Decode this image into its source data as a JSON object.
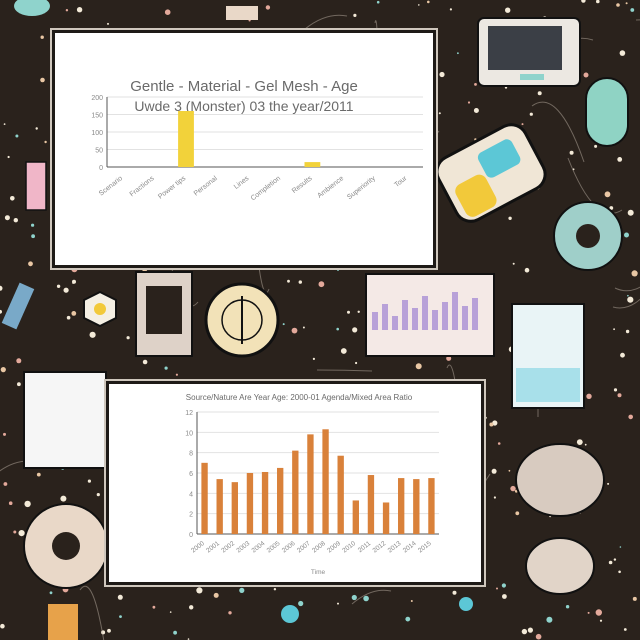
{
  "charts": {
    "top": {
      "title": "Gentle - Material - Gel Mesh - Age",
      "subtitle": "Uwde 3 (Monster) 03 the year/2011"
    },
    "bottom": {
      "title": "Source/Nature Are Year Age: 2000-01 Agenda/Mixed Area Ratio"
    }
  },
  "chart_data": [
    {
      "type": "bar",
      "title": "Gentle - Material - Gel Mesh - Age",
      "subtitle": "Uwde 3 (Monster) 03 the year/2011",
      "xlabel": "",
      "ylabel": "",
      "ylim": [
        0,
        200
      ],
      "yticks": [
        "200",
        "150",
        "100",
        "50",
        "0"
      ],
      "categories": [
        "Scenario",
        "Fractions",
        "Power tips",
        "Personal",
        "Lines",
        "Completion",
        "Results",
        "Ambience",
        "Superiority",
        "Tour"
      ],
      "values": [
        0,
        0,
        160,
        0,
        0,
        0,
        0,
        0,
        0,
        0
      ],
      "color": "#f2d23a",
      "secondary": {
        "index": 6,
        "value": 14,
        "color": "#f2d23a"
      },
      "grid": true
    },
    {
      "type": "bar",
      "title": "Source/Nature Are Year Age: 2000-01 Agenda/Mixed Area Ratio",
      "xlabel": "Time",
      "ylabel": "",
      "ylim": [
        0,
        12
      ],
      "yticks": [
        "12",
        "10",
        "8",
        "6",
        "4",
        "2",
        "0"
      ],
      "categories": [
        "2000",
        "2001",
        "2002",
        "2003",
        "2004",
        "2005",
        "2006",
        "2007",
        "2008",
        "2009",
        "2010",
        "2011",
        "2012",
        "2013",
        "2014",
        "2015"
      ],
      "values": [
        7.0,
        5.4,
        5.1,
        6.0,
        6.1,
        6.5,
        8.2,
        9.8,
        10.3,
        7.7,
        3.3,
        5.8,
        3.1,
        5.5,
        5.4,
        5.5
      ],
      "color": "#d9813a",
      "grid": true
    }
  ]
}
